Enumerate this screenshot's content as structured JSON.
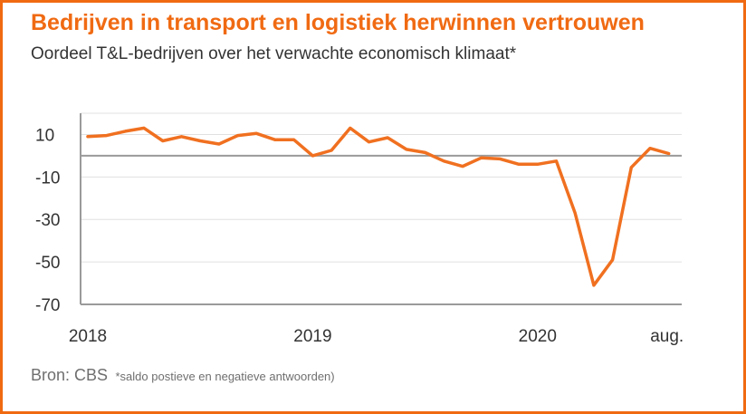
{
  "title": "Bedrijven in transport en logistiek herwinnen vertrouwen",
  "subtitle": "Oordeel T&L-bedrijven over het verwachte economisch klimaat*",
  "source": "Bron: CBS",
  "note": "*saldo postieve en negatieve antwoorden)",
  "colors": {
    "accent": "#f06a12",
    "line": "#f07020",
    "gridline": "#e0e0e0",
    "axis": "#9a9a9a",
    "text": "#333333"
  },
  "chart_data": {
    "type": "line",
    "title": "",
    "xlabel": "",
    "ylabel": "",
    "ylim": [
      -70,
      20
    ],
    "yticks": [
      10,
      -10,
      -30,
      -50,
      -70
    ],
    "y_tick_labels": [
      "10",
      "-10",
      "-30",
      "-50",
      "-70"
    ],
    "x_tick_labels": [
      "2018",
      "2019",
      "2020",
      "aug."
    ],
    "x_tick_positions": [
      "2018-01",
      "2019-01",
      "2020-01",
      "2020-08"
    ],
    "grid": "horizontal",
    "legend": "none",
    "series": [
      {
        "x": [
          "2018-01",
          "2018-02",
          "2018-03",
          "2018-04",
          "2018-05",
          "2018-06",
          "2018-07",
          "2018-08",
          "2018-09",
          "2018-10",
          "2018-11",
          "2018-12",
          "2019-01",
          "2019-02",
          "2019-03",
          "2019-04",
          "2019-05",
          "2019-06",
          "2019-07",
          "2019-08",
          "2019-09",
          "2019-10",
          "2019-11",
          "2019-12",
          "2020-01",
          "2020-02",
          "2020-03",
          "2020-04",
          "2020-05",
          "2020-06",
          "2020-07",
          "2020-08"
        ],
        "values": [
          9,
          9.5,
          11.5,
          13,
          7,
          9,
          7,
          5.5,
          9.5,
          10.5,
          7.5,
          7.5,
          0,
          2.5,
          13,
          6.5,
          8.5,
          3,
          1.5,
          -2.5,
          -5,
          -1,
          -1.5,
          -4,
          -4,
          -2.5,
          -27,
          -61,
          -49,
          -5.5,
          3.5,
          1
        ]
      }
    ]
  }
}
